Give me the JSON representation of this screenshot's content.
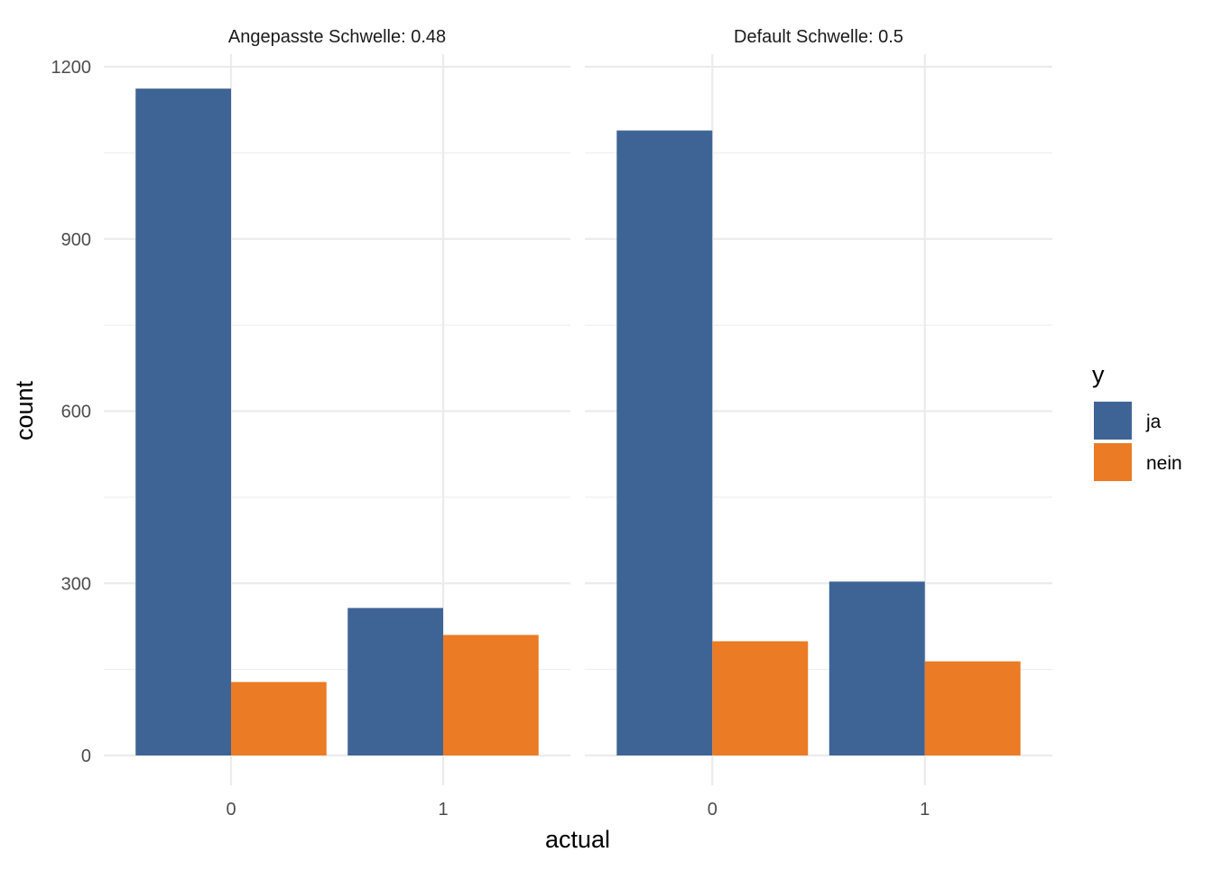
{
  "chart_data": {
    "type": "bar",
    "layout": "faceted grouped bar",
    "xlabel": "actual",
    "ylabel": "count",
    "ylim": [
      0,
      1250
    ],
    "y_ticks": [
      0,
      300,
      600,
      900,
      1200
    ],
    "categories": [
      "0",
      "1"
    ],
    "legend": {
      "title": "y",
      "position": "right",
      "entries": [
        {
          "name": "ja",
          "color": "#3e6496"
        },
        {
          "name": "nein",
          "color": "#eb7b24"
        }
      ]
    },
    "grid": true,
    "facets": [
      {
        "title": "Angepasste Schwelle: 0.48",
        "series": [
          {
            "name": "ja",
            "values": [
              1162,
              257
            ]
          },
          {
            "name": "nein",
            "values": [
              128,
              210
            ]
          }
        ]
      },
      {
        "title": "Default Schwelle: 0.5",
        "series": [
          {
            "name": "ja",
            "values": [
              1089,
              303
            ]
          },
          {
            "name": "nein",
            "values": [
              199,
              164
            ]
          }
        ]
      }
    ]
  }
}
